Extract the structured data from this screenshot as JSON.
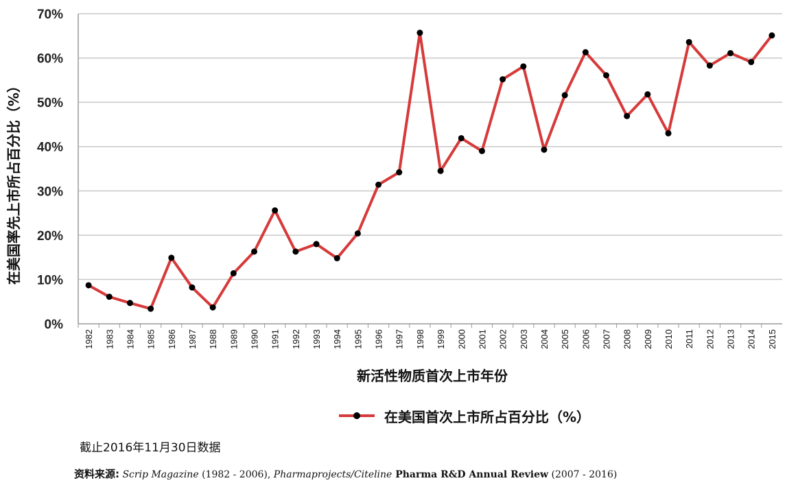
{
  "chart_data": {
    "type": "line",
    "x": [
      "1982",
      "1983",
      "1984",
      "1985",
      "1986",
      "1987",
      "1988",
      "1989",
      "1990",
      "1991",
      "1992",
      "1993",
      "1994",
      "1995",
      "1996",
      "1997",
      "1998",
      "1999",
      "2000",
      "2001",
      "2002",
      "2003",
      "2004",
      "2005",
      "2006",
      "2007",
      "2008",
      "2009",
      "2010",
      "2011",
      "2012",
      "2013",
      "2014",
      "2015"
    ],
    "series": [
      {
        "name": "在美国首次上市所占百分比（%）",
        "color": "#d63a3a",
        "marker_color": "#000000",
        "values": [
          8.7,
          6.1,
          4.7,
          3.4,
          14.9,
          8.2,
          3.7,
          11.4,
          16.3,
          25.6,
          16.3,
          18.0,
          14.8,
          20.4,
          31.4,
          34.2,
          65.7,
          34.5,
          41.9,
          39.0,
          55.2,
          58.1,
          39.3,
          51.6,
          61.3,
          56.1,
          46.9,
          51.8,
          43.0,
          63.6,
          58.3,
          61.1,
          59.1,
          65.1
        ]
      }
    ],
    "ylim": [
      0,
      70
    ],
    "yticks": [
      "0%",
      "10%",
      "20%",
      "30%",
      "40%",
      "50%",
      "60%",
      "70%"
    ],
    "ylabel": "在美国率先上市所占百分比（%）",
    "xlabel": "新活性物质首次上市年份",
    "grid": true,
    "legend_position": "bottom"
  },
  "legend": {
    "label": "在美国首次上市所占百分比（%）"
  },
  "note": "截止2016年11月30日数据",
  "source": {
    "label": "资料来源:",
    "part1_italic": "Scrip Magazine",
    "part1_years": " (1982 - 2006), ",
    "part2_italic": "Pharmaprojects/Citeline",
    "part2_bold": " Pharma R&D Annual Review",
    "part2_years": " (2007 - 2016)"
  }
}
